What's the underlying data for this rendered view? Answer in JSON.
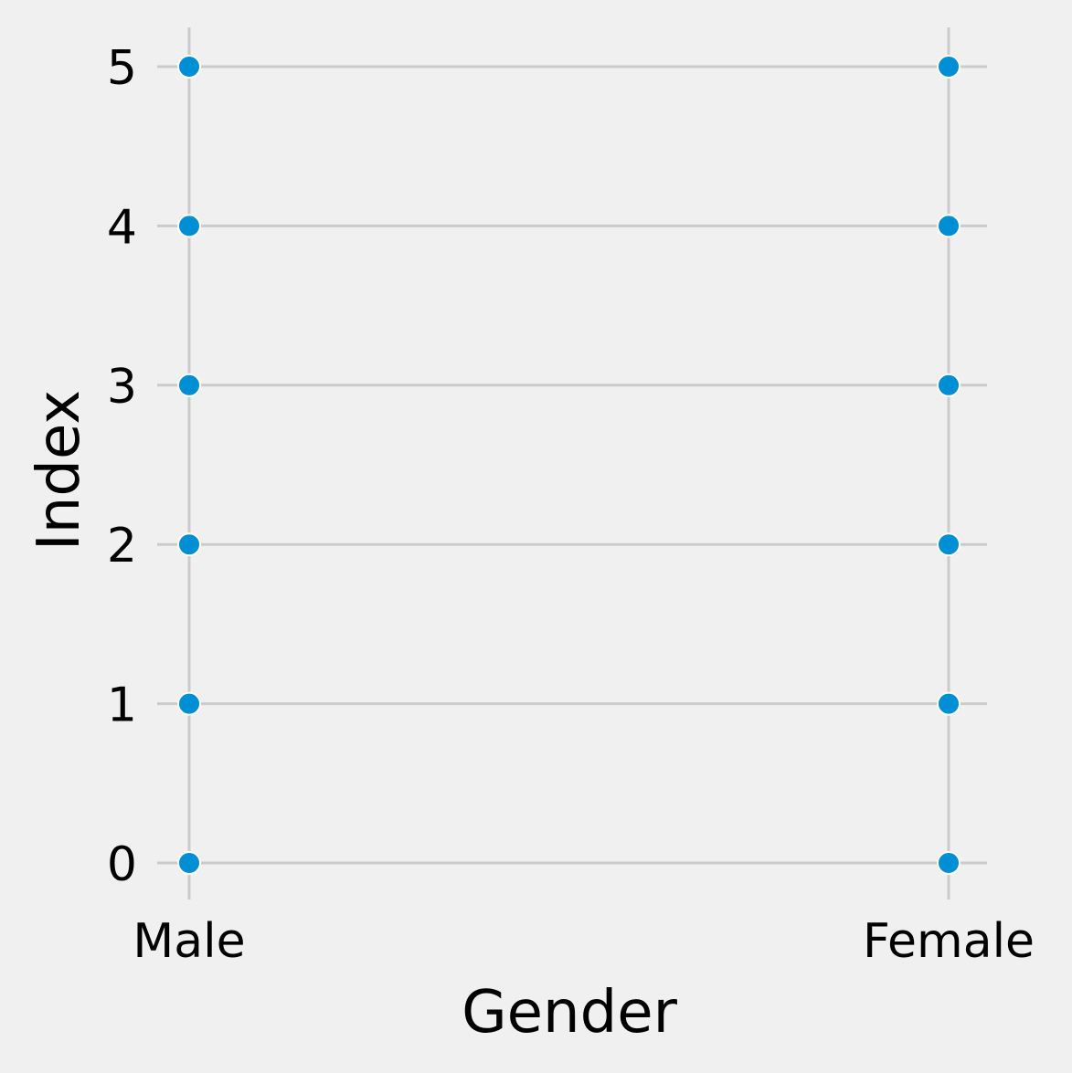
{
  "chart_data": {
    "type": "scatter",
    "title": "",
    "xlabel": "Gender",
    "ylabel": "Index",
    "x_categories": [
      "Male",
      "Female"
    ],
    "y_ticks": [
      0,
      1,
      2,
      3,
      4,
      5
    ],
    "ylim": [
      -0.2,
      5.25
    ],
    "grid": true,
    "point_color": "#008fd5",
    "background_color": "#f0f0f0",
    "grid_color": "#cbcbcb",
    "points": [
      {
        "x": "Male",
        "y": 0
      },
      {
        "x": "Male",
        "y": 1
      },
      {
        "x": "Male",
        "y": 2
      },
      {
        "x": "Male",
        "y": 3
      },
      {
        "x": "Male",
        "y": 4
      },
      {
        "x": "Male",
        "y": 5
      },
      {
        "x": "Female",
        "y": 0
      },
      {
        "x": "Female",
        "y": 1
      },
      {
        "x": "Female",
        "y": 2
      },
      {
        "x": "Female",
        "y": 3
      },
      {
        "x": "Female",
        "y": 4
      },
      {
        "x": "Female",
        "y": 5
      }
    ]
  }
}
